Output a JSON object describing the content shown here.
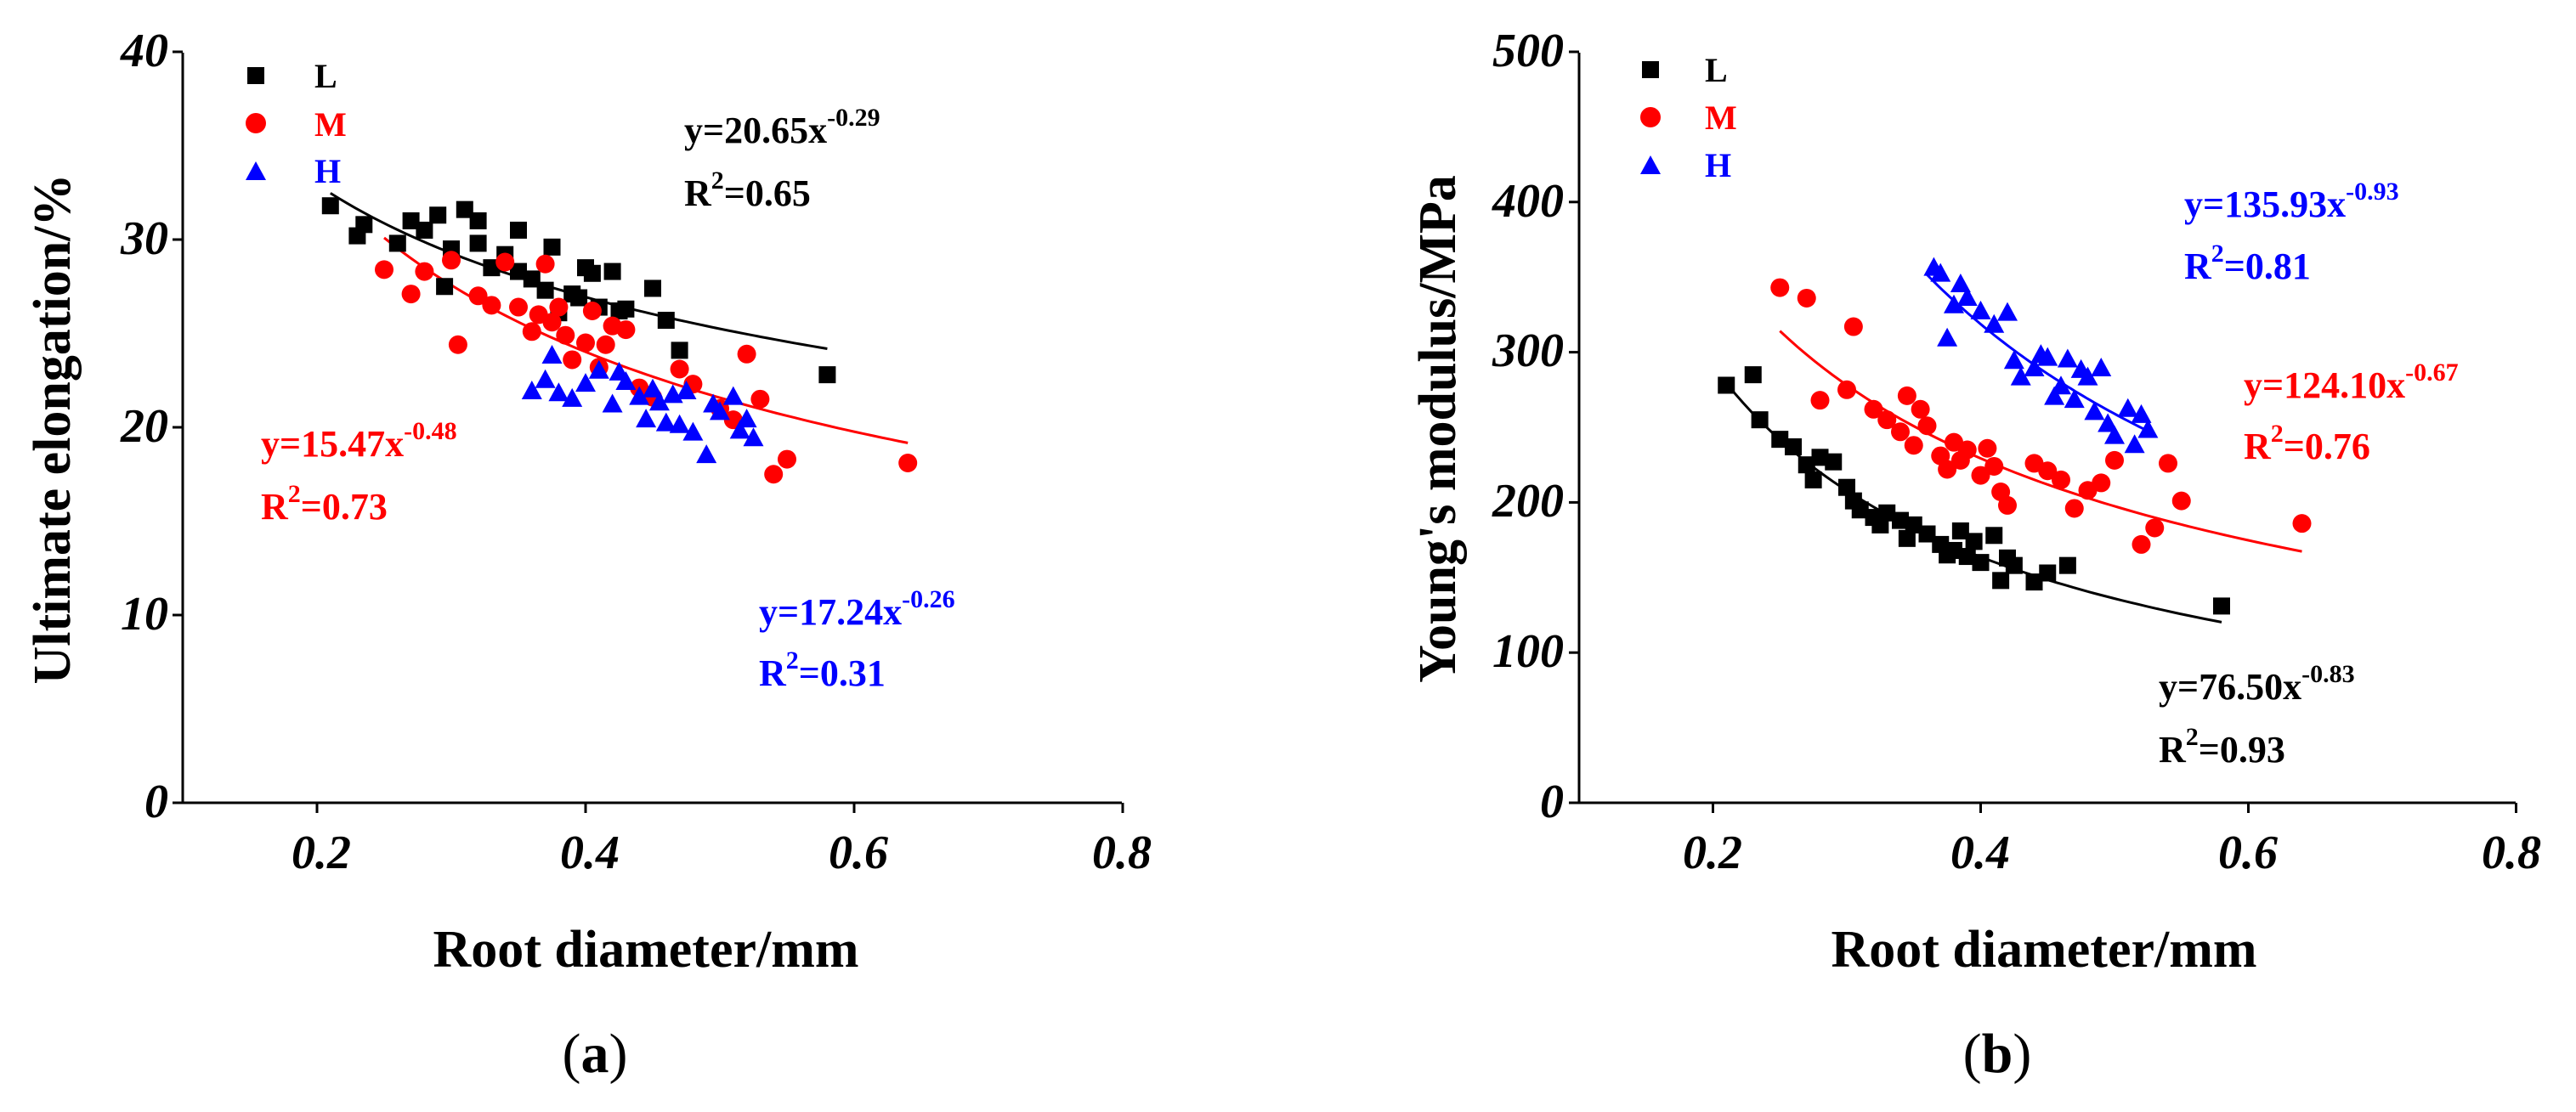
{
  "chart_data": [
    {
      "type": "scatter",
      "panel_label": "a",
      "xlabel": "Root diameter/mm",
      "ylabel": "Ultimate elongation/%",
      "xlim": [
        0.1,
        0.8
      ],
      "ylim": [
        0,
        40
      ],
      "xticks": [
        0.2,
        0.4,
        0.6,
        0.8
      ],
      "xtick_labels": [
        "0.2",
        "0.4",
        "0.6",
        "0.8"
      ],
      "yticks": [
        0,
        10,
        20,
        30,
        40
      ],
      "ytick_labels": [
        "0",
        "10",
        "20",
        "30",
        "40"
      ],
      "grid": false,
      "legend_position": "top-left",
      "series": [
        {
          "name": "L",
          "color": "#000000",
          "marker": "square",
          "fit": {
            "a": 20.65,
            "b": -0.29,
            "r2": "0.65",
            "x_range": [
              0.21,
              0.58
            ]
          },
          "equation": {
            "lhs": "y=20.65x",
            "exponent": "-0.29",
            "r2_prefix": "R",
            "r2_power": "2",
            "r2_value": "=0.65"
          },
          "points": [
            [
              0.21,
              31.8
            ],
            [
              0.23,
              30.2
            ],
            [
              0.235,
              30.8
            ],
            [
              0.26,
              29.8
            ],
            [
              0.27,
              31
            ],
            [
              0.28,
              30.5
            ],
            [
              0.29,
              31.3
            ],
            [
              0.295,
              27.5
            ],
            [
              0.3,
              29.5
            ],
            [
              0.31,
              31.6
            ],
            [
              0.32,
              31
            ],
            [
              0.32,
              29.8
            ],
            [
              0.33,
              28.5
            ],
            [
              0.34,
              29.2
            ],
            [
              0.35,
              30.5
            ],
            [
              0.35,
              28.3
            ],
            [
              0.36,
              27.9
            ],
            [
              0.37,
              27.3
            ],
            [
              0.375,
              29.6
            ],
            [
              0.38,
              26.1
            ],
            [
              0.39,
              27.1
            ],
            [
              0.395,
              26.9
            ],
            [
              0.4,
              28.5
            ],
            [
              0.405,
              28.2
            ],
            [
              0.41,
              26.4
            ],
            [
              0.42,
              28.3
            ],
            [
              0.425,
              26.2
            ],
            [
              0.43,
              26.3
            ],
            [
              0.45,
              27.4
            ],
            [
              0.46,
              25.7
            ],
            [
              0.47,
              24.1
            ],
            [
              0.58,
              22.8
            ]
          ]
        },
        {
          "name": "M",
          "color": "#ff0000",
          "marker": "circle",
          "fit": {
            "a": 15.47,
            "b": -0.48,
            "r2": "0.73",
            "x_range": [
              0.25,
              0.64
            ]
          },
          "equation": {
            "lhs": "y=15.47x",
            "exponent": "-0.48",
            "r2_prefix": "R",
            "r2_power": "2",
            "r2_value": "=0.73"
          },
          "points": [
            [
              0.25,
              28.4
            ],
            [
              0.27,
              27.1
            ],
            [
              0.28,
              28.3
            ],
            [
              0.3,
              28.9
            ],
            [
              0.305,
              24.4
            ],
            [
              0.32,
              27
            ],
            [
              0.33,
              26.5
            ],
            [
              0.34,
              28.8
            ],
            [
              0.35,
              26.4
            ],
            [
              0.36,
              25.1
            ],
            [
              0.365,
              26
            ],
            [
              0.37,
              28.7
            ],
            [
              0.375,
              25.6
            ],
            [
              0.38,
              26.4
            ],
            [
              0.385,
              24.9
            ],
            [
              0.39,
              23.6
            ],
            [
              0.4,
              24.5
            ],
            [
              0.405,
              26.2
            ],
            [
              0.41,
              23.2
            ],
            [
              0.415,
              24.4
            ],
            [
              0.42,
              25.4
            ],
            [
              0.43,
              25.2
            ],
            [
              0.44,
              22.1
            ],
            [
              0.45,
              21.6
            ],
            [
              0.47,
              23.1
            ],
            [
              0.48,
              22.3
            ],
            [
              0.5,
              21
            ],
            [
              0.51,
              20.4
            ],
            [
              0.52,
              23.9
            ],
            [
              0.53,
              21.5
            ],
            [
              0.54,
              17.5
            ],
            [
              0.55,
              18.3
            ],
            [
              0.64,
              18.1
            ]
          ]
        },
        {
          "name": "H",
          "color": "#0000ff",
          "marker": "triangle",
          "fit": null,
          "equation": {
            "lhs": "y=17.24x",
            "exponent": "-0.26",
            "r2_prefix": "R",
            "r2_power": "2",
            "r2_value": "=0.31"
          },
          "points": [
            [
              0.36,
              21.9
            ],
            [
              0.37,
              22.5
            ],
            [
              0.375,
              23.8
            ],
            [
              0.38,
              21.8
            ],
            [
              0.39,
              21.5
            ],
            [
              0.4,
              22.3
            ],
            [
              0.41,
              23
            ],
            [
              0.42,
              21.2
            ],
            [
              0.425,
              22.9
            ],
            [
              0.43,
              22.4
            ],
            [
              0.44,
              21.6
            ],
            [
              0.445,
              20.4
            ],
            [
              0.45,
              22
            ],
            [
              0.455,
              21.3
            ],
            [
              0.46,
              20.2
            ],
            [
              0.465,
              21.7
            ],
            [
              0.47,
              20.1
            ],
            [
              0.475,
              21.9
            ],
            [
              0.48,
              19.7
            ],
            [
              0.49,
              18.5
            ],
            [
              0.495,
              21.2
            ],
            [
              0.5,
              20.8
            ],
            [
              0.51,
              21.6
            ],
            [
              0.515,
              19.8
            ],
            [
              0.52,
              20.4
            ],
            [
              0.525,
              19.4
            ]
          ]
        }
      ]
    },
    {
      "type": "scatter",
      "panel_label": "b",
      "xlabel": "Root diameter/mm",
      "ylabel": "Young's modulus/MPa",
      "xlim": [
        0.1,
        0.8
      ],
      "ylim": [
        0,
        500
      ],
      "xticks": [
        0.2,
        0.4,
        0.6,
        0.8
      ],
      "xtick_labels": [
        "0.2",
        "0.4",
        "0.6",
        "0.8"
      ],
      "yticks": [
        0,
        100,
        200,
        300,
        400,
        500
      ],
      "ytick_labels": [
        "0",
        "100",
        "200",
        "300",
        "400",
        "500"
      ],
      "grid": false,
      "legend_position": "top-left",
      "series": [
        {
          "name": "L",
          "color": "#000000",
          "marker": "square",
          "fit": {
            "a": 76.5,
            "b": -0.83,
            "r2": "0.93",
            "x_range": [
              0.21,
              0.58
            ]
          },
          "equation": {
            "lhs": "y=76.50x",
            "exponent": "-0.83",
            "r2_prefix": "R",
            "r2_power": "2",
            "r2_value": "=0.93"
          },
          "points": [
            [
              0.21,
              278
            ],
            [
              0.23,
              285
            ],
            [
              0.235,
              255
            ],
            [
              0.25,
              242
            ],
            [
              0.26,
              237
            ],
            [
              0.27,
              225
            ],
            [
              0.275,
              215
            ],
            [
              0.28,
              230
            ],
            [
              0.29,
              227
            ],
            [
              0.3,
              210
            ],
            [
              0.305,
              201
            ],
            [
              0.31,
              195
            ],
            [
              0.32,
              190
            ],
            [
              0.325,
              185
            ],
            [
              0.33,
              193
            ],
            [
              0.34,
              188
            ],
            [
              0.345,
              176
            ],
            [
              0.35,
              185
            ],
            [
              0.36,
              179
            ],
            [
              0.37,
              172
            ],
            [
              0.375,
              165
            ],
            [
              0.38,
              168
            ],
            [
              0.385,
              181
            ],
            [
              0.39,
              164
            ],
            [
              0.395,
              174
            ],
            [
              0.4,
              160
            ],
            [
              0.41,
              178
            ],
            [
              0.415,
              148
            ],
            [
              0.42,
              163
            ],
            [
              0.425,
              158
            ],
            [
              0.44,
              147
            ],
            [
              0.45,
              153
            ],
            [
              0.465,
              158
            ],
            [
              0.58,
              131
            ]
          ]
        },
        {
          "name": "M",
          "color": "#ff0000",
          "marker": "circle",
          "fit": {
            "a": 124.1,
            "b": -0.67,
            "r2": "0.76",
            "x_range": [
              0.25,
              0.64
            ]
          },
          "equation": {
            "lhs": "y=124.10x",
            "exponent": "-0.67",
            "r2_prefix": "R",
            "r2_power": "2",
            "r2_value": "=0.76"
          },
          "points": [
            [
              0.25,
              343
            ],
            [
              0.27,
              336
            ],
            [
              0.28,
              268
            ],
            [
              0.3,
              275
            ],
            [
              0.305,
              317
            ],
            [
              0.32,
              262
            ],
            [
              0.33,
              255
            ],
            [
              0.34,
              247
            ],
            [
              0.345,
              271
            ],
            [
              0.35,
              238
            ],
            [
              0.355,
              262
            ],
            [
              0.36,
              251
            ],
            [
              0.37,
              231
            ],
            [
              0.375,
              222
            ],
            [
              0.38,
              240
            ],
            [
              0.385,
              228
            ],
            [
              0.39,
              235
            ],
            [
              0.4,
              218
            ],
            [
              0.405,
              236
            ],
            [
              0.41,
              224
            ],
            [
              0.415,
              207
            ],
            [
              0.42,
              198
            ],
            [
              0.44,
              226
            ],
            [
              0.45,
              221
            ],
            [
              0.46,
              215
            ],
            [
              0.47,
              196
            ],
            [
              0.48,
              208
            ],
            [
              0.49,
              213
            ],
            [
              0.5,
              228
            ],
            [
              0.52,
              172
            ],
            [
              0.53,
              183
            ],
            [
              0.54,
              226
            ],
            [
              0.55,
              201
            ],
            [
              0.64,
              186
            ]
          ]
        },
        {
          "name": "H",
          "color": "#0000ff",
          "marker": "triangle",
          "fit": {
            "a": 135.93,
            "b": -0.93,
            "r2": "0.81",
            "x_range": [
              0.36,
              0.53
            ]
          },
          "equation": {
            "lhs": "y=135.93x",
            "exponent": "-0.93",
            "r2_prefix": "R",
            "r2_power": "2",
            "r2_value": "=0.81"
          },
          "points": [
            [
              0.365,
              356
            ],
            [
              0.37,
              352
            ],
            [
              0.375,
              309
            ],
            [
              0.38,
              331
            ],
            [
              0.385,
              345
            ],
            [
              0.39,
              336
            ],
            [
              0.4,
              327
            ],
            [
              0.41,
              318
            ],
            [
              0.42,
              326
            ],
            [
              0.425,
              294
            ],
            [
              0.43,
              283
            ],
            [
              0.44,
              289
            ],
            [
              0.445,
              298
            ],
            [
              0.45,
              296
            ],
            [
              0.455,
              270
            ],
            [
              0.46,
              277
            ],
            [
              0.465,
              295
            ],
            [
              0.47,
              268
            ],
            [
              0.475,
              288
            ],
            [
              0.48,
              283
            ],
            [
              0.485,
              260
            ],
            [
              0.49,
              289
            ],
            [
              0.495,
              252
            ],
            [
              0.5,
              244
            ],
            [
              0.51,
              262
            ],
            [
              0.515,
              238
            ],
            [
              0.52,
              258
            ],
            [
              0.525,
              248
            ]
          ]
        }
      ]
    }
  ]
}
